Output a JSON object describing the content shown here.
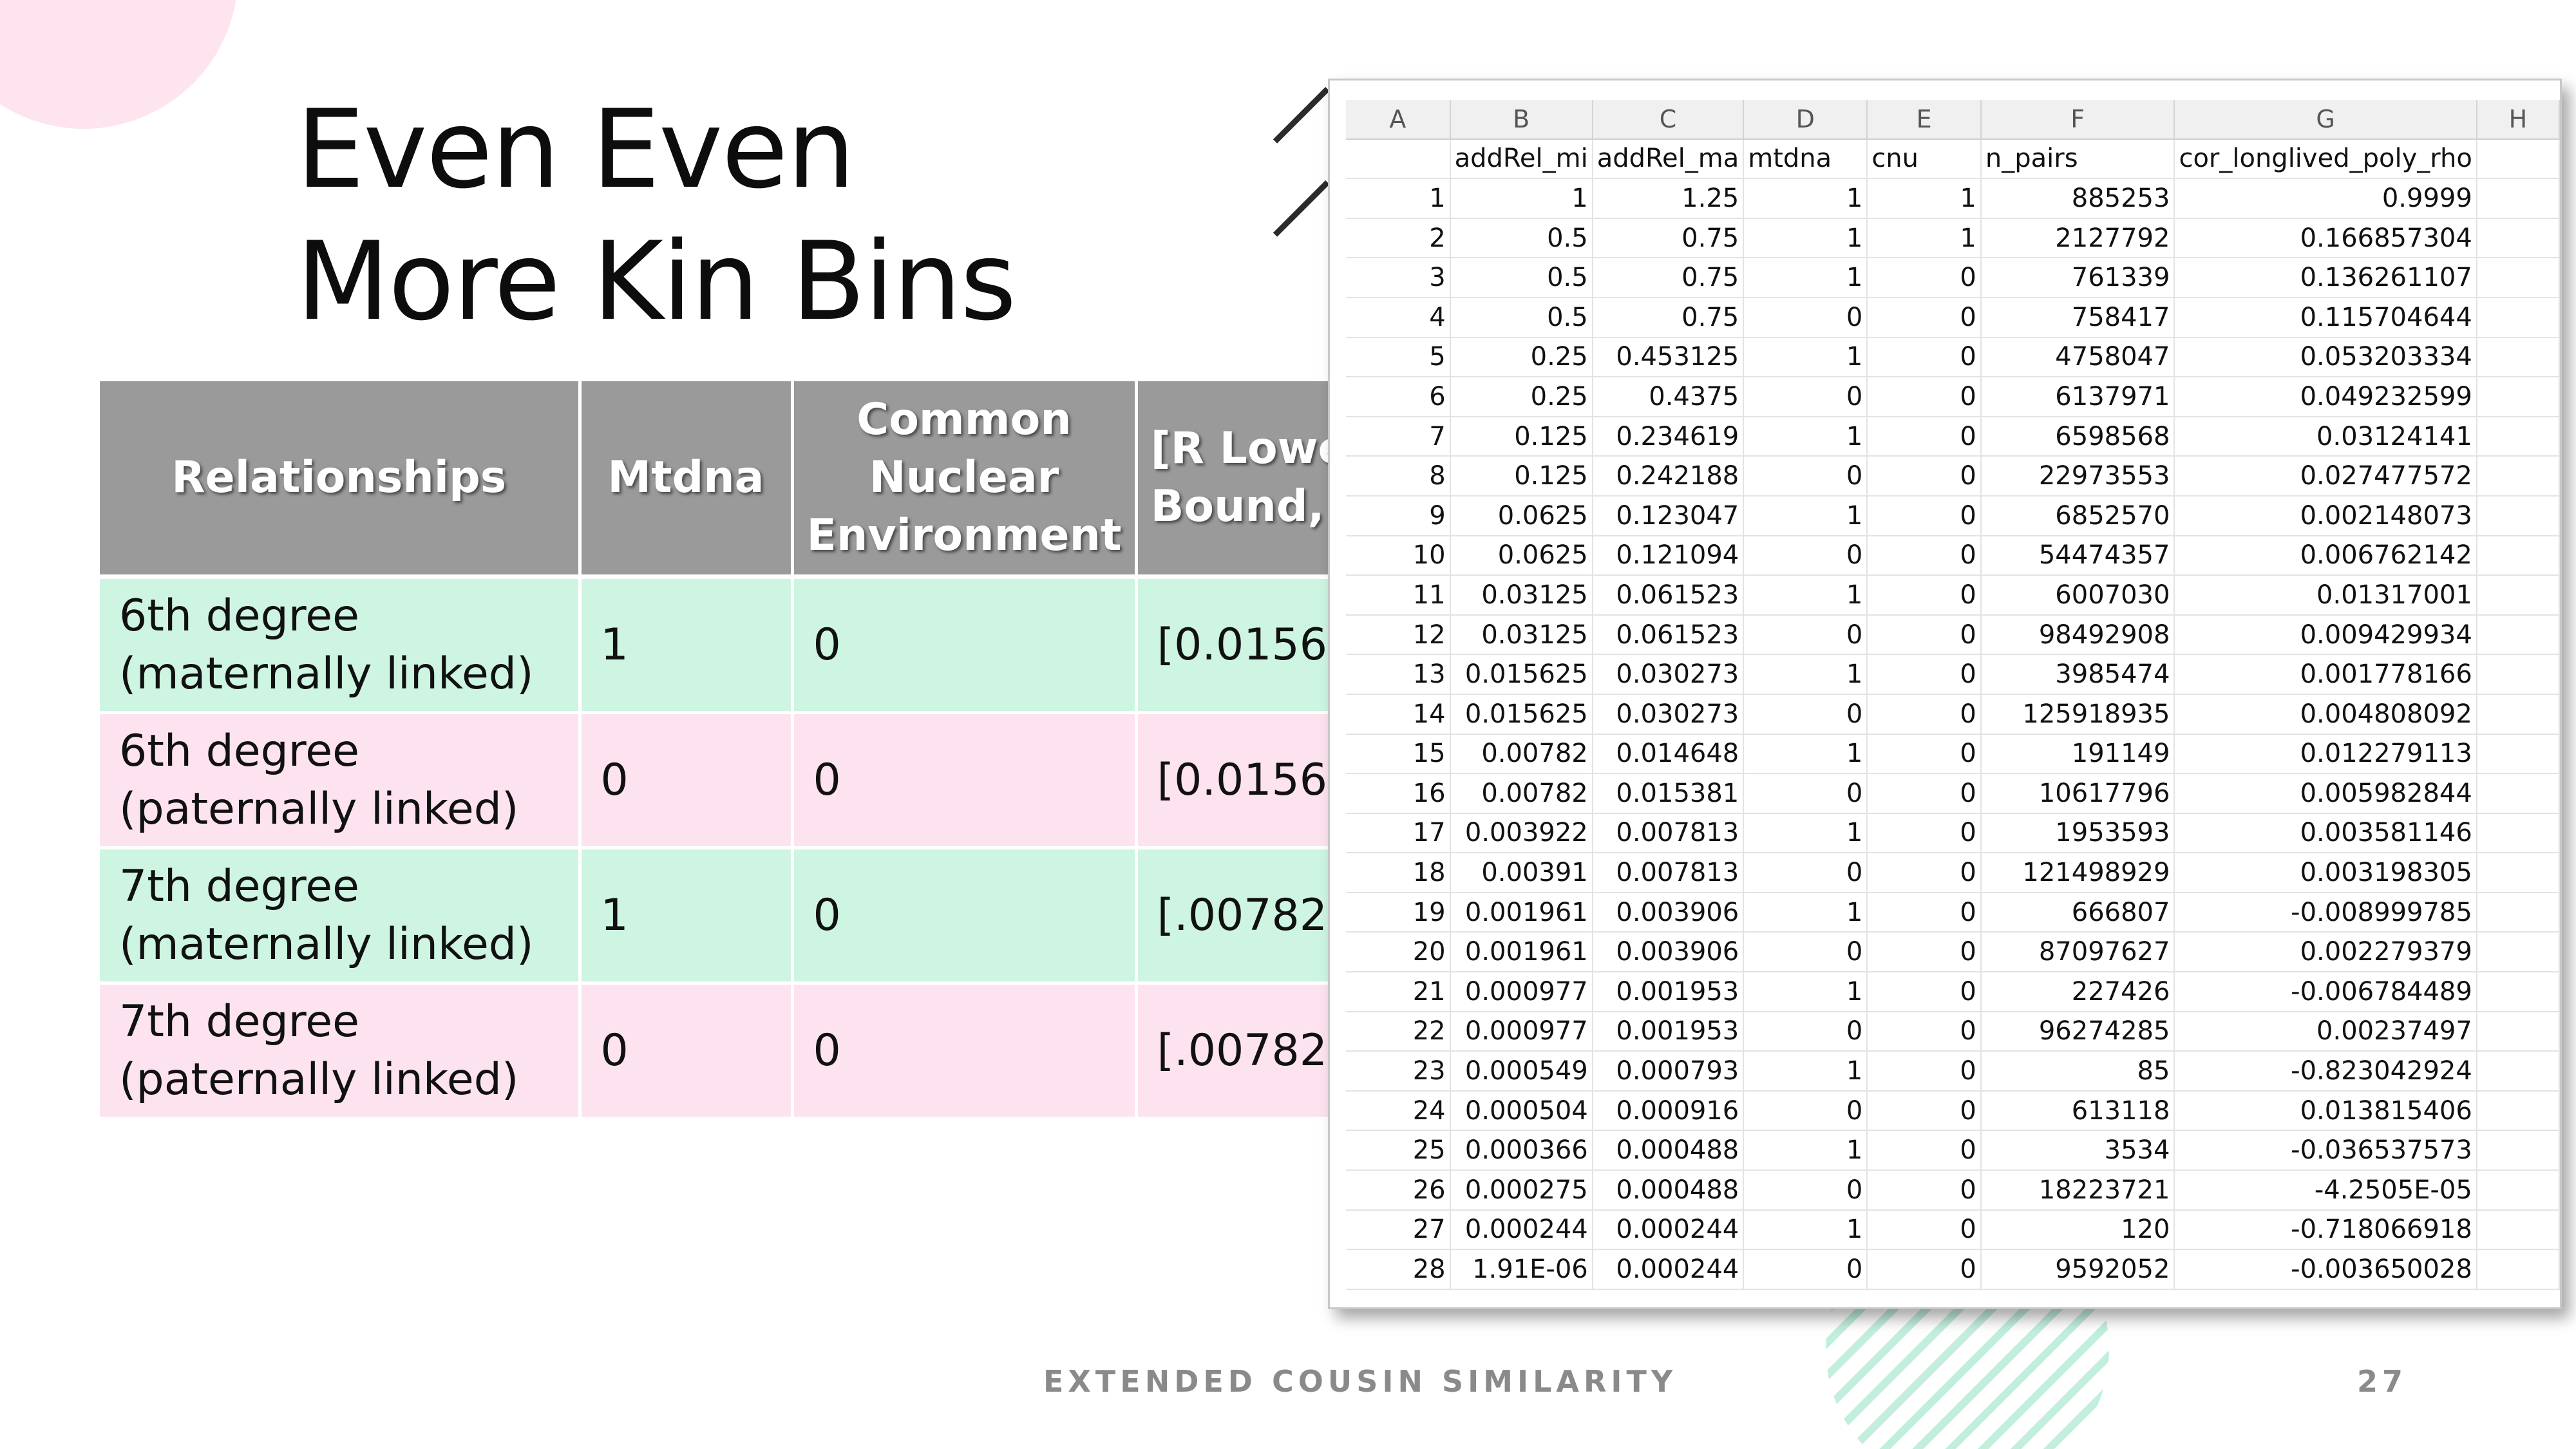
{
  "slide": {
    "title_lines": [
      "Even Even",
      "More Kin Bins"
    ],
    "footer_text": "EXTENDED COUSIN SIMILARITY",
    "page_number": "27",
    "colors": {
      "header_gray": "#9a9a9a",
      "row_green": "#cdf5e2",
      "row_pink": "#fde3ef",
      "accent_pink": "#fde4ee",
      "accent_mint": "#b7ebd6"
    }
  },
  "kin_table": {
    "headers": [
      "Relationships",
      "Mtdna",
      "Common\nNuclear\nEnvironment",
      "[R Lower\nBound,"
    ],
    "rows": [
      {
        "relationship": "6th degree\n(maternally linked)",
        "mtdna": "1",
        "cne": "0",
        "bound": "[0.015625"
      },
      {
        "relationship": "6th degree\n(paternally linked)",
        "mtdna": "0",
        "cne": "0",
        "bound": "[0.015625"
      },
      {
        "relationship": "7th degree\n(maternally linked)",
        "mtdna": "1",
        "cne": "0",
        "bound": "[.0078201"
      },
      {
        "relationship": "7th degree\n(paternally linked)",
        "mtdna": "0",
        "cne": "0",
        "bound": "[.0078201"
      }
    ]
  },
  "spreadsheet": {
    "column_letters": [
      "A",
      "B",
      "C",
      "D",
      "E",
      "F",
      "G",
      "H"
    ],
    "field_names": [
      "",
      "addRel_mi",
      "addRel_ma",
      "mtdna",
      "cnu",
      "n_pairs",
      "cor_longlived_poly_rho",
      ""
    ],
    "rows": [
      [
        "1",
        "1",
        "1.25",
        "1",
        "1",
        "885253",
        "0.9999"
      ],
      [
        "2",
        "0.5",
        "0.75",
        "1",
        "1",
        "2127792",
        "0.166857304"
      ],
      [
        "3",
        "0.5",
        "0.75",
        "1",
        "0",
        "761339",
        "0.136261107"
      ],
      [
        "4",
        "0.5",
        "0.75",
        "0",
        "0",
        "758417",
        "0.115704644"
      ],
      [
        "5",
        "0.25",
        "0.453125",
        "1",
        "0",
        "4758047",
        "0.053203334"
      ],
      [
        "6",
        "0.25",
        "0.4375",
        "0",
        "0",
        "6137971",
        "0.049232599"
      ],
      [
        "7",
        "0.125",
        "0.234619",
        "1",
        "0",
        "6598568",
        "0.03124141"
      ],
      [
        "8",
        "0.125",
        "0.242188",
        "0",
        "0",
        "22973553",
        "0.027477572"
      ],
      [
        "9",
        "0.0625",
        "0.123047",
        "1",
        "0",
        "6852570",
        "0.002148073"
      ],
      [
        "10",
        "0.0625",
        "0.121094",
        "0",
        "0",
        "54474357",
        "0.006762142"
      ],
      [
        "11",
        "0.03125",
        "0.061523",
        "1",
        "0",
        "6007030",
        "0.01317001"
      ],
      [
        "12",
        "0.03125",
        "0.061523",
        "0",
        "0",
        "98492908",
        "0.009429934"
      ],
      [
        "13",
        "0.015625",
        "0.030273",
        "1",
        "0",
        "3985474",
        "0.001778166"
      ],
      [
        "14",
        "0.015625",
        "0.030273",
        "0",
        "0",
        "125918935",
        "0.004808092"
      ],
      [
        "15",
        "0.00782",
        "0.014648",
        "1",
        "0",
        "191149",
        "0.012279113"
      ],
      [
        "16",
        "0.00782",
        "0.015381",
        "0",
        "0",
        "10617796",
        "0.005982844"
      ],
      [
        "17",
        "0.003922",
        "0.007813",
        "1",
        "0",
        "1953593",
        "0.003581146"
      ],
      [
        "18",
        "0.00391",
        "0.007813",
        "0",
        "0",
        "121498929",
        "0.003198305"
      ],
      [
        "19",
        "0.001961",
        "0.003906",
        "1",
        "0",
        "666807",
        "-0.008999785"
      ],
      [
        "20",
        "0.001961",
        "0.003906",
        "0",
        "0",
        "87097627",
        "0.002279379"
      ],
      [
        "21",
        "0.000977",
        "0.001953",
        "1",
        "0",
        "227426",
        "-0.006784489"
      ],
      [
        "22",
        "0.000977",
        "0.001953",
        "0",
        "0",
        "96274285",
        "0.00237497"
      ],
      [
        "23",
        "0.000549",
        "0.000793",
        "1",
        "0",
        "85",
        "-0.823042924"
      ],
      [
        "24",
        "0.000504",
        "0.000916",
        "0",
        "0",
        "613118",
        "0.013815406"
      ],
      [
        "25",
        "0.000366",
        "0.000488",
        "1",
        "0",
        "3534",
        "-0.036537573"
      ],
      [
        "26",
        "0.000275",
        "0.000488",
        "0",
        "0",
        "18223721",
        "-4.2505E-05"
      ],
      [
        "27",
        "0.000244",
        "0.000244",
        "1",
        "0",
        "120",
        "-0.718066918"
      ],
      [
        "28",
        "1.91E-06",
        "0.000244",
        "0",
        "0",
        "9592052",
        "-0.003650028"
      ]
    ]
  }
}
